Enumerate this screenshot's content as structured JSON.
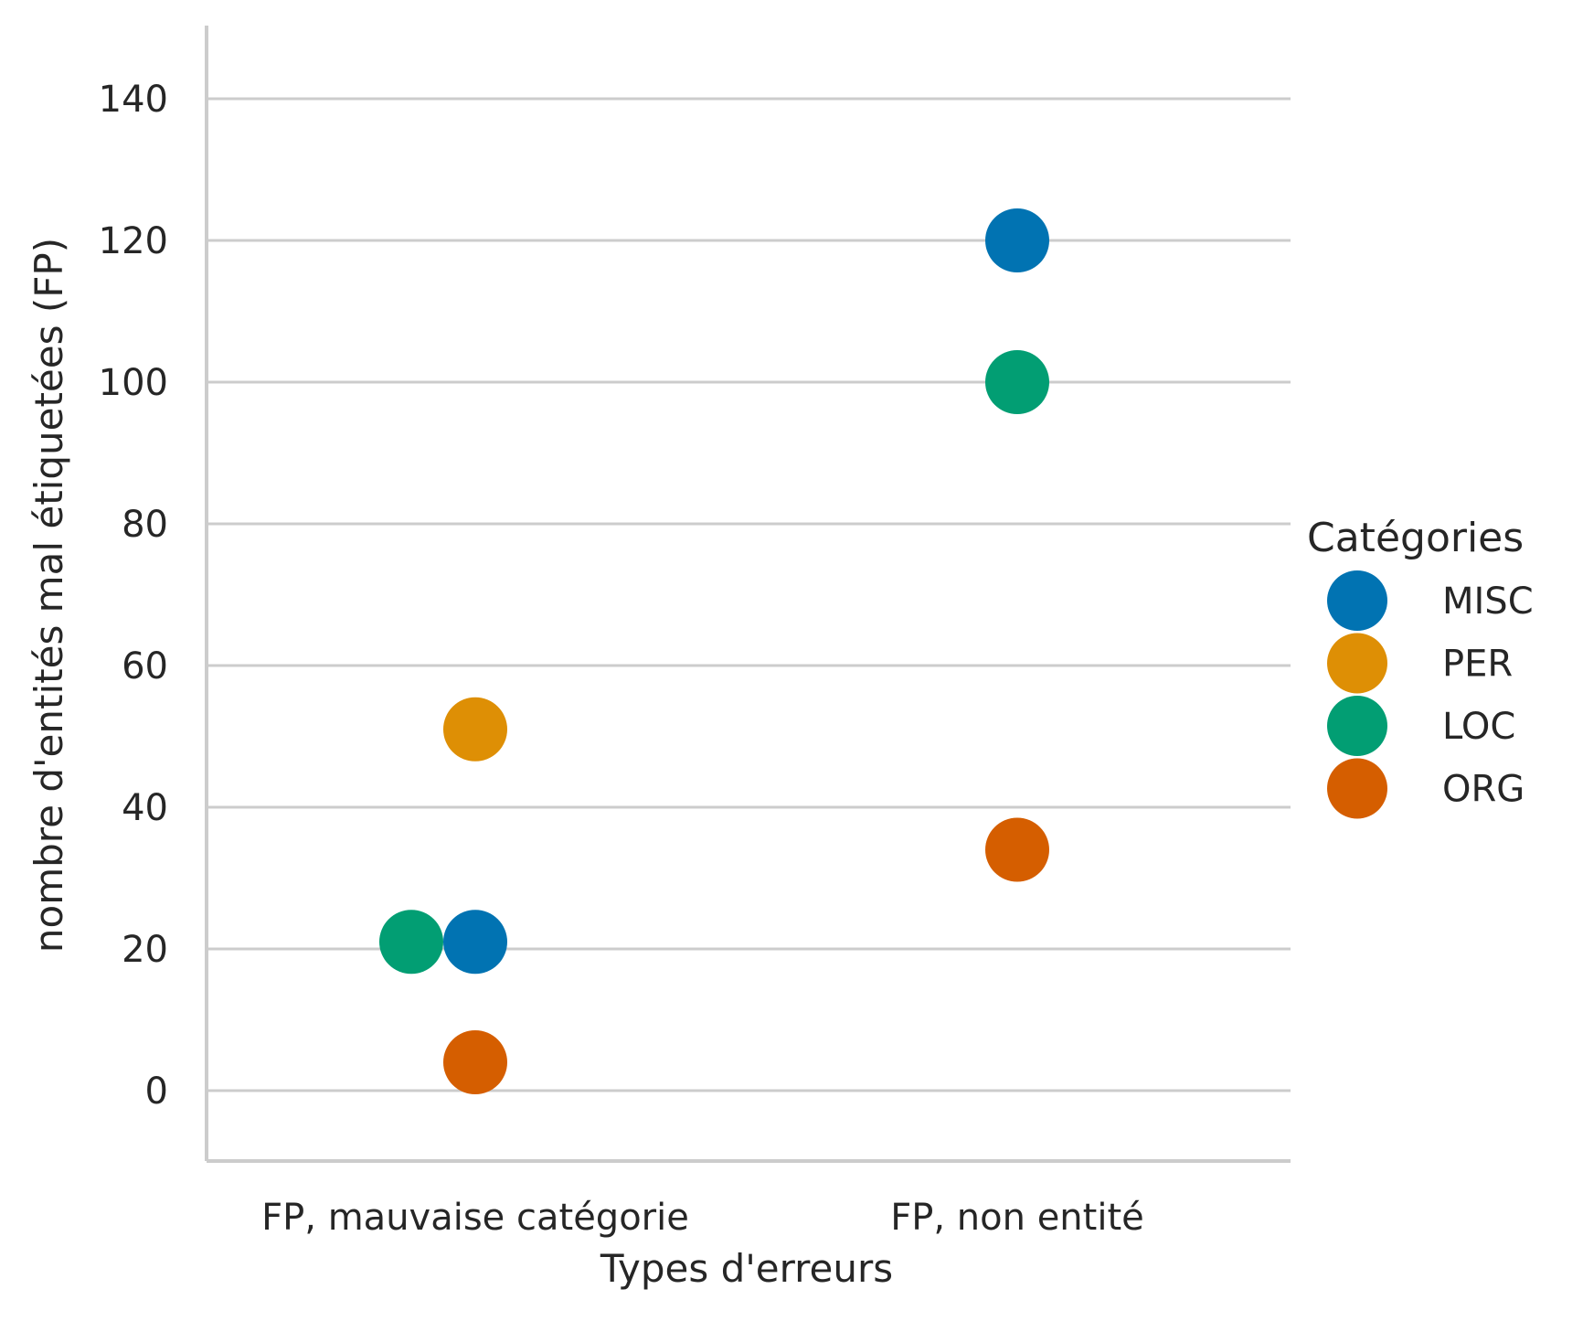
{
  "chart_data": {
    "type": "scatter",
    "subtype": "strip",
    "xlabel": "Types d'erreurs",
    "ylabel": "nombre d'entités mal étiquetées (FP)",
    "categories": [
      "FP, mauvaise catégorie",
      "FP, non entité"
    ],
    "ylim": [
      -10,
      150
    ],
    "yticks": [
      0,
      20,
      40,
      60,
      80,
      100,
      120,
      140
    ],
    "grid": "horizontal",
    "legend": {
      "title": "Catégories",
      "placement": "right"
    },
    "series": [
      {
        "name": "MISC",
        "color": "#0173b2",
        "values": [
          21,
          120
        ]
      },
      {
        "name": "PER",
        "color": "#de8f05",
        "values": [
          51,
          null
        ]
      },
      {
        "name": "LOC",
        "color": "#029e73",
        "values": [
          21,
          100
        ]
      },
      {
        "name": "ORG",
        "color": "#d55e00",
        "values": [
          4,
          34
        ]
      }
    ]
  }
}
